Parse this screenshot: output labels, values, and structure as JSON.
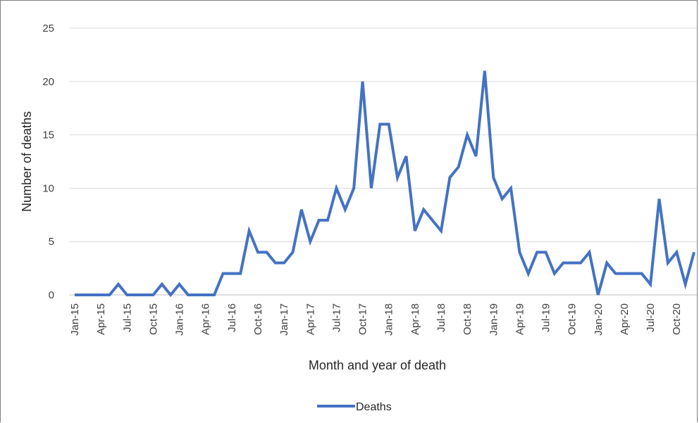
{
  "chart_data": {
    "type": "line",
    "title": "",
    "xlabel": "Month and year of death",
    "ylabel": "Number of deaths",
    "ylim": [
      0,
      25
    ],
    "yticks": [
      0,
      5,
      10,
      15,
      20,
      25
    ],
    "xtick_labels": [
      "Jan-15",
      "Apr-15",
      "Jul-15",
      "Oct-15",
      "Jan-16",
      "Apr-16",
      "Jul-16",
      "Oct-16",
      "Jan-17",
      "Apr-17",
      "Jul-17",
      "Oct-17",
      "Jan-18",
      "Apr-18",
      "Jul-18",
      "Oct-18",
      "Jan-19",
      "Apr-19",
      "Jul-19",
      "Oct-19",
      "Jan-20",
      "Apr-20",
      "Jul-20",
      "Oct-20"
    ],
    "grid": true,
    "legend_position": "bottom",
    "x_start": "Jan-15",
    "x_interval": "month",
    "series": [
      {
        "name": "Deaths",
        "color": "#4472c4",
        "values": [
          0,
          0,
          0,
          0,
          0,
          1,
          0,
          0,
          0,
          0,
          1,
          0,
          1,
          0,
          0,
          0,
          0,
          2,
          2,
          2,
          6,
          4,
          4,
          3,
          3,
          4,
          8,
          5,
          7,
          7,
          10,
          8,
          10,
          20,
          10,
          16,
          16,
          11,
          13,
          6,
          8,
          7,
          6,
          11,
          12,
          15,
          13,
          21,
          11,
          9,
          10,
          4,
          2,
          4,
          4,
          2,
          3,
          3,
          3,
          4,
          0,
          3,
          2,
          2,
          2,
          2,
          1,
          9,
          3,
          4,
          1,
          4
        ]
      }
    ]
  }
}
